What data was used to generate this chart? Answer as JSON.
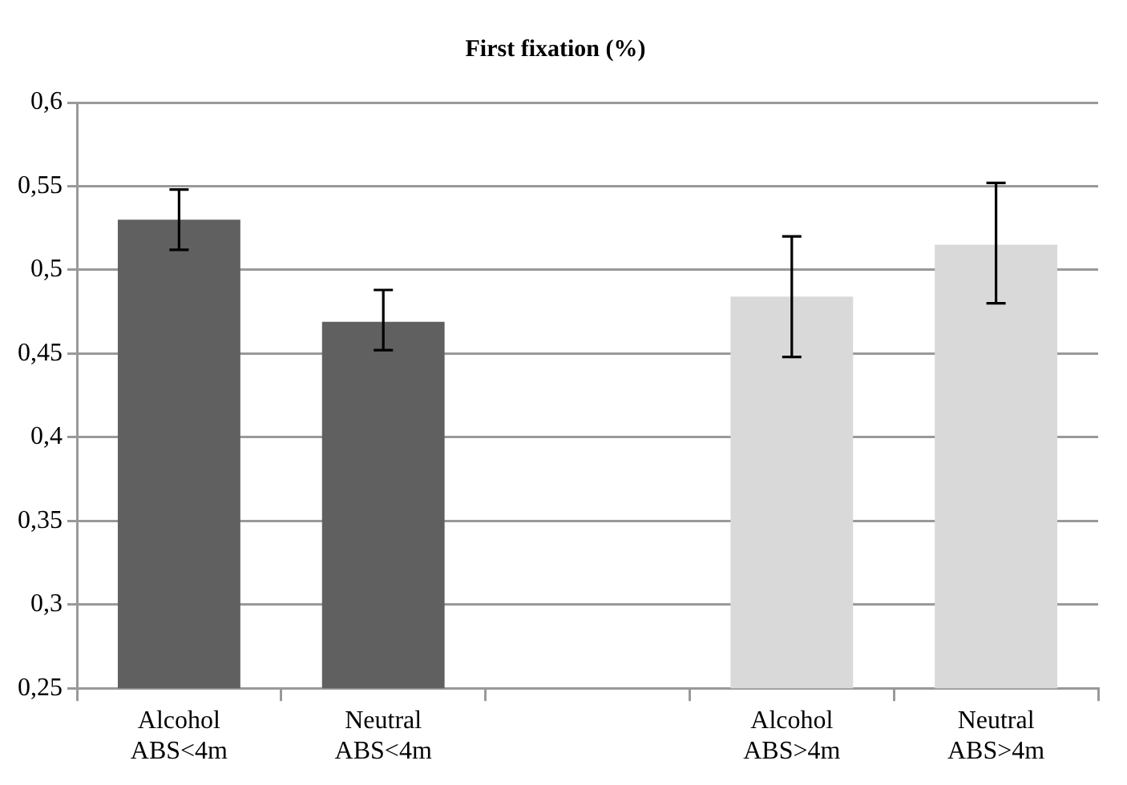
{
  "chart_data": {
    "type": "bar",
    "title": "First fixation (%)",
    "categories": [
      "Alcohol ABS<4m",
      "Neutral ABS<4m",
      null,
      "Alcohol ABS>4m",
      "Neutral ABS>4m"
    ],
    "values": [
      0.53,
      0.469,
      null,
      0.484,
      0.515
    ],
    "colors": [
      "#606060",
      "#606060",
      "#606060",
      "#d9d9d9",
      "#d9d9d9"
    ],
    "errors": [
      [
        0.512,
        0.548
      ],
      [
        0.452,
        0.488
      ],
      null,
      [
        0.448,
        0.52
      ],
      [
        0.48,
        0.552
      ]
    ],
    "ylim": [
      0.25,
      0.6
    ],
    "yticks": [
      {
        "value": 0.25,
        "label": "0,25"
      },
      {
        "value": 0.3,
        "label": "0,3"
      },
      {
        "value": 0.35,
        "label": "0,35"
      },
      {
        "value": 0.4,
        "label": "0,4"
      },
      {
        "value": 0.45,
        "label": "0,45"
      },
      {
        "value": 0.5,
        "label": "0,5"
      },
      {
        "value": 0.55,
        "label": "0,55"
      },
      {
        "value": 0.6,
        "label": "0,6"
      }
    ],
    "grid": "y",
    "legend": false
  }
}
